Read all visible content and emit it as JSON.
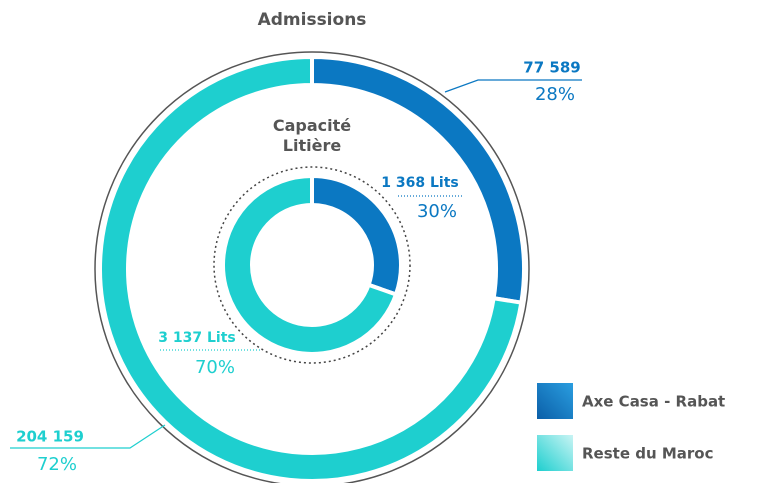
{
  "chart_data": [
    {
      "type": "donut",
      "title": "Admissions",
      "categories": [
        "Axe Casa - Rabat",
        "Reste du Maroc"
      ],
      "values": [
        77589,
        204159
      ],
      "value_labels": [
        "77 589",
        "204 159"
      ],
      "shares": [
        28,
        72
      ],
      "share_labels": [
        "28%",
        "72%"
      ],
      "colors": [
        "#0b78c2",
        "#1ecfcf"
      ]
    },
    {
      "type": "donut",
      "title": "Capacité Litière",
      "categories": [
        "Axe Casa - Rabat",
        "Reste du Maroc"
      ],
      "values": [
        1368,
        3137
      ],
      "value_labels": [
        "1 368 Lits",
        "3 137 Lits"
      ],
      "shares": [
        30,
        70
      ],
      "share_labels": [
        "30%",
        "70%"
      ],
      "colors": [
        "#0b78c2",
        "#1ecfcf"
      ]
    }
  ]
}
